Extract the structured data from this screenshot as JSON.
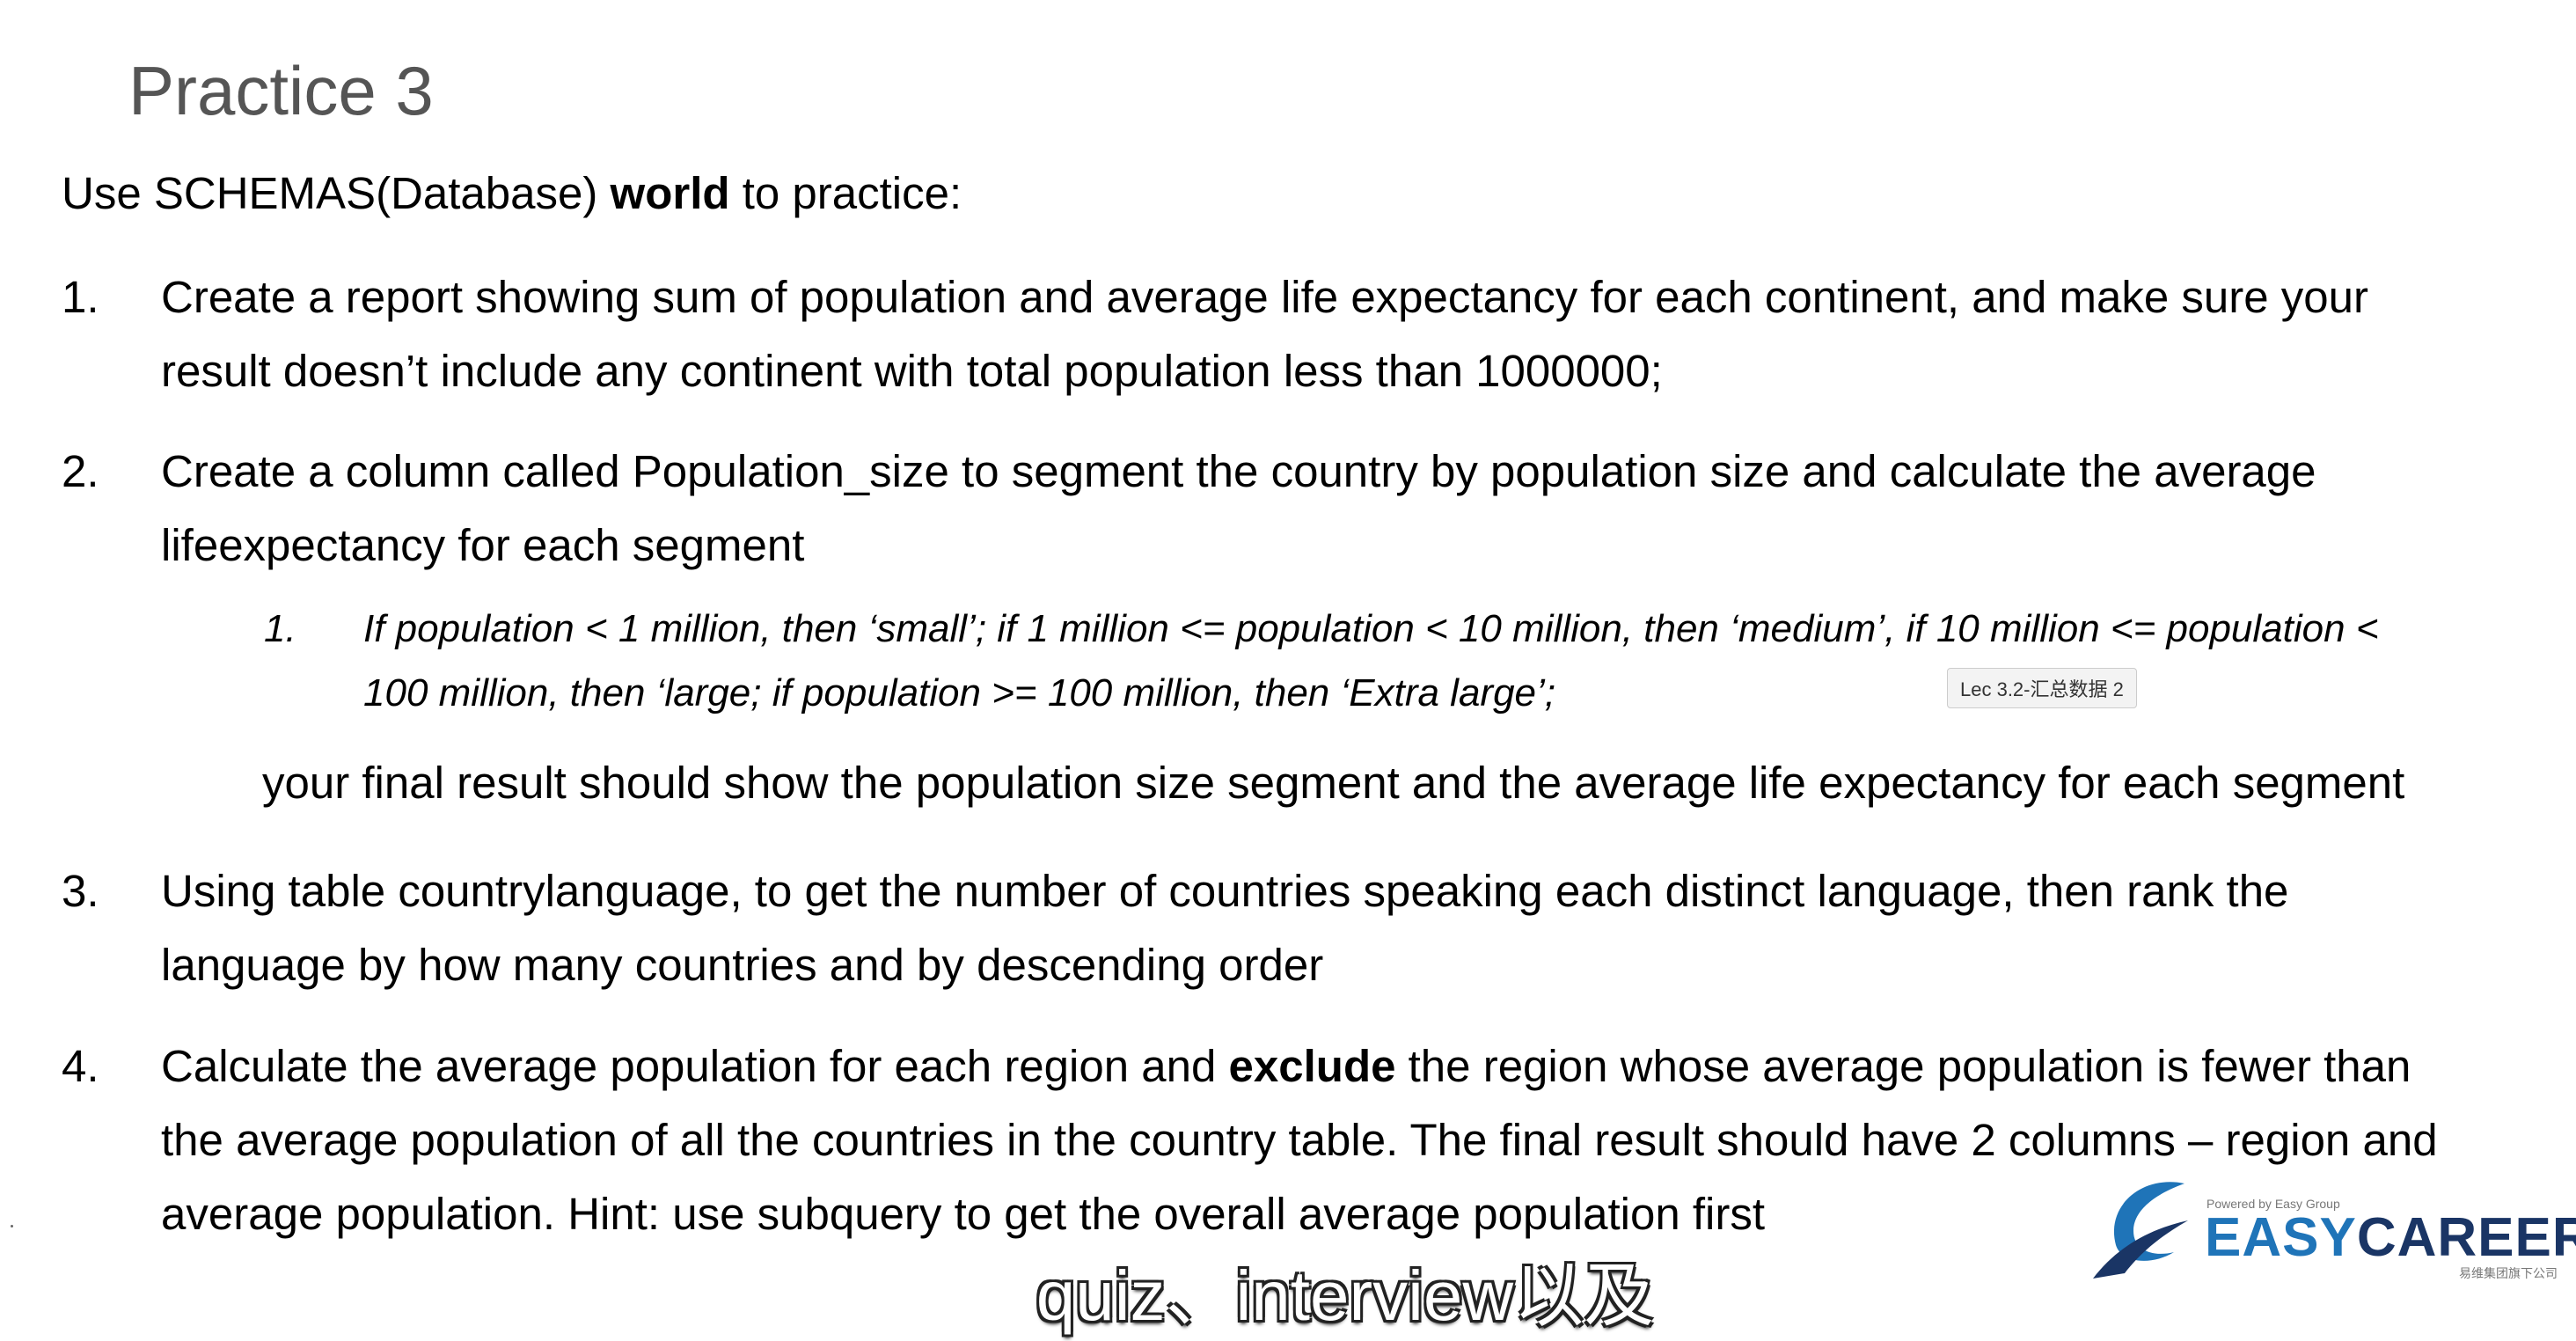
{
  "slide": {
    "title": "Practice 3",
    "intro": {
      "prefix": "Use SCHEMAS(Database) ",
      "bold": "world",
      "suffix": " to practice:"
    }
  },
  "items": [
    {
      "number": "1.",
      "line1": "Create a report showing sum of population and average life expectancy for each continent, and make sure your",
      "line2": "result doesn’t include any continent with total population less than 1000000;"
    },
    {
      "number": "2.",
      "line1": "Create a column called Population_size to segment the country by population size and calculate the average",
      "line2": "lifeexpectancy for each segment",
      "subitem": {
        "number": "1.",
        "line1": "If population < 1 million, then ‘small’; if 1 million <= population < 10 million, then ‘medium’,  if 10 million <= population <",
        "line2": "100 million, then ‘large; if population >= 100 million, then ‘Extra large’;"
      },
      "final_note": "your final result should show the population size segment and the average life expectancy for each segment"
    },
    {
      "number": "3.",
      "line1": "Using table countrylanguage, to get the number of countries speaking each distinct language, then rank the",
      "line2": "language by how many countries and by descending order"
    },
    {
      "number": "4.",
      "line1_prefix": "Calculate the average population for each region and ",
      "line1_bold": "exclude",
      "line1_suffix": " the region whose average population is fewer than",
      "line2": "the average population of all the countries in the country table. The final result should have 2 columns – region and",
      "line3": "average population. Hint: use subquery to get the overall average population first"
    }
  ],
  "tooltip": "Lec 3.2-汇总数据 2",
  "subtitle": "quiz、interview以及",
  "logo": {
    "powered_by": "Powered by Easy Group",
    "brand_part1": "EASY",
    "brand_part2": "CAREER",
    "tagline": "易维集团旗下公司",
    "colors": {
      "light_blue": "#1f74b8",
      "dark_navy": "#1a3565"
    }
  }
}
